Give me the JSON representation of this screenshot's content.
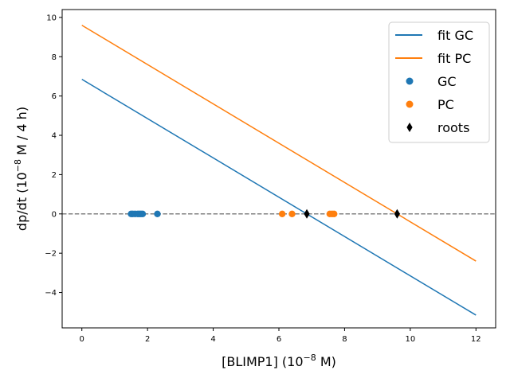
{
  "chart_data": {
    "type": "scatter",
    "xlabel_main": "[BLIMP1] (10",
    "xlabel_exp": "−8",
    "xlabel_tail": " M)",
    "ylabel_main": "dp/dt (10",
    "ylabel_exp": "−8",
    "ylabel_tail": " M / 4 h)",
    "xlim": [
      -0.6,
      12.6
    ],
    "ylim": [
      -5.8,
      10.4
    ],
    "x_ticks": [
      0,
      2,
      4,
      6,
      8,
      10,
      12
    ],
    "x_tick_labels": [
      "0",
      "2",
      "4",
      "6",
      "8",
      "10",
      "12"
    ],
    "y_ticks": [
      -4,
      -2,
      0,
      2,
      4,
      6,
      8,
      10
    ],
    "y_tick_labels": [
      "−4",
      "−2",
      "0",
      "2",
      "4",
      "6",
      "8",
      "10"
    ],
    "lines": [
      {
        "name": "fit GC",
        "color": "#1f77b4",
        "x": [
          0,
          12
        ],
        "y": [
          6.85,
          -5.15
        ]
      },
      {
        "name": "fit PC",
        "color": "#ff7f0e",
        "x": [
          0,
          12
        ],
        "y": [
          9.6,
          -2.4
        ]
      }
    ],
    "reference_line": {
      "y": 0,
      "color": "#808080",
      "style": "dashed"
    },
    "scatter": [
      {
        "name": "GC",
        "color": "#1f77b4",
        "marker": "circle",
        "x": [
          1.5,
          1.55,
          1.62,
          1.7,
          1.75,
          1.8,
          1.85,
          2.3
        ],
        "y": [
          0,
          0,
          0,
          0,
          0,
          0,
          0,
          0
        ]
      },
      {
        "name": "PC",
        "color": "#ff7f0e",
        "marker": "circle",
        "x": [
          6.1,
          6.4,
          7.55,
          7.62,
          7.68
        ],
        "y": [
          0,
          0,
          0,
          0,
          0
        ]
      },
      {
        "name": "roots",
        "color": "#000000",
        "marker": "diamond",
        "x": [
          6.85,
          9.6
        ],
        "y": [
          0,
          0
        ]
      }
    ],
    "legend": {
      "position": "top-right",
      "entries": [
        {
          "label": "fit GC",
          "kind": "line",
          "color": "#1f77b4"
        },
        {
          "label": "fit PC",
          "kind": "line",
          "color": "#ff7f0e"
        },
        {
          "label": "GC",
          "kind": "circle",
          "color": "#1f77b4"
        },
        {
          "label": "PC",
          "kind": "circle",
          "color": "#ff7f0e"
        },
        {
          "label": "roots",
          "kind": "diamond",
          "color": "#000000"
        }
      ]
    }
  }
}
